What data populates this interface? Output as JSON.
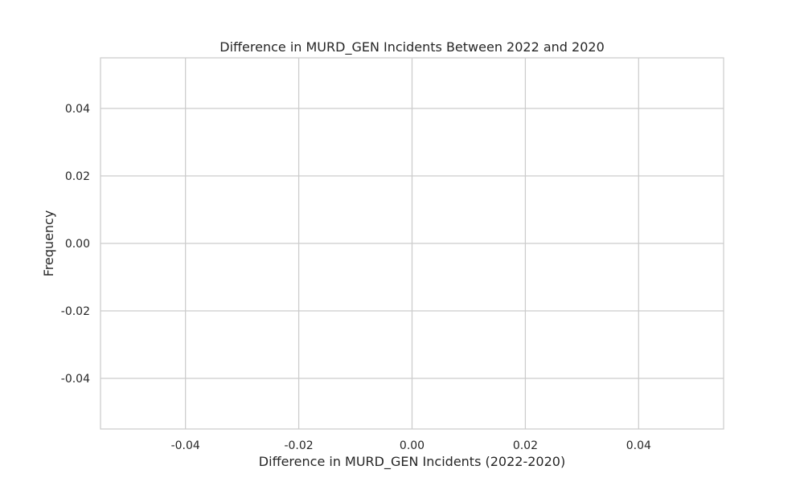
{
  "chart_data": {
    "type": "bar",
    "title": "Difference in MURD_GEN Incidents Between 2022 and 2020",
    "xlabel": "Difference in MURD_GEN Incidents (2022-2020)",
    "ylabel": "Frequency",
    "xlim": [
      -0.055,
      0.055
    ],
    "ylim": [
      -0.055,
      0.055
    ],
    "x_ticks": [
      -0.04,
      -0.02,
      0.0,
      0.02,
      0.04
    ],
    "x_tick_labels": [
      "-0.04",
      "-0.02",
      "0.00",
      "0.02",
      "0.04"
    ],
    "y_ticks": [
      0.04,
      0.02,
      0.0,
      -0.02,
      -0.04
    ],
    "y_tick_labels": [
      "0.04",
      "0.02",
      "0.00",
      "-0.02",
      "-0.04"
    ],
    "values": [],
    "grid": true,
    "colors": {
      "grid": "#cccccc",
      "frame": "#cccccc",
      "text": "#262626",
      "background": "#ffffff"
    }
  }
}
